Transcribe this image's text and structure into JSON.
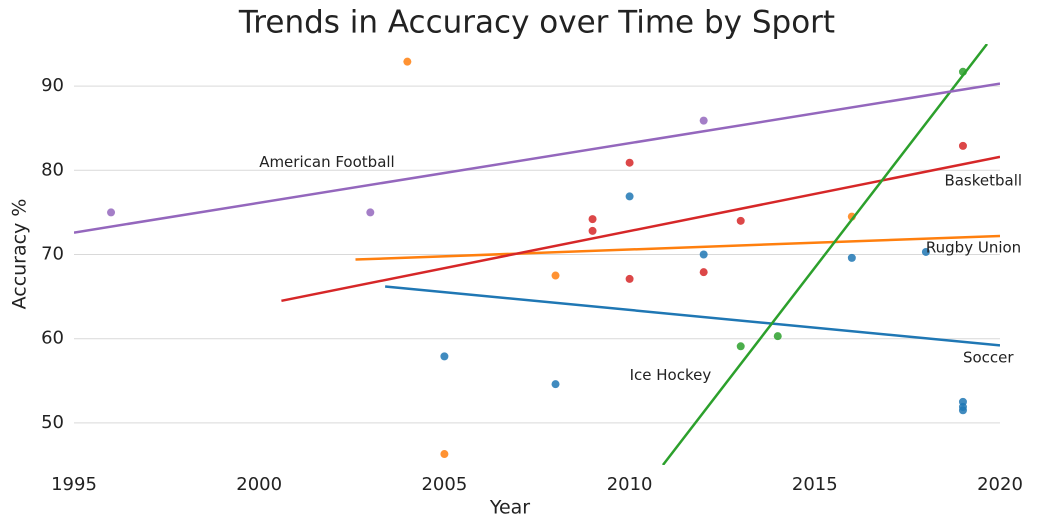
{
  "chart_data": {
    "type": "scatter",
    "title": "Trends in Accuracy over Time by Sport",
    "xlabel": "Year",
    "ylabel": "Accuracy %",
    "xlim": [
      1995,
      2020
    ],
    "ylim": [
      45,
      95
    ],
    "xticks": [
      1995,
      2000,
      2005,
      2010,
      2015,
      2020
    ],
    "yticks": [
      50,
      60,
      70,
      80,
      90
    ],
    "grid": true,
    "series": [
      {
        "name": "Soccer",
        "color": "#1f77b4",
        "x": [
          2005,
          2008,
          2010,
          2012,
          2016,
          2018,
          2019,
          2019,
          2019
        ],
        "y": [
          57.9,
          54.6,
          76.9,
          70,
          69.6,
          70.3,
          52.5,
          51.9,
          51.5
        ],
        "trend": {
          "x": [
            2003.4,
            2020
          ],
          "y": [
            66.2,
            59.2
          ]
        }
      },
      {
        "name": "Rugby Union",
        "color": "#ff7f0e",
        "x": [
          2004,
          2005,
          2008,
          2016
        ],
        "y": [
          92.9,
          46.3,
          67.5,
          74.5
        ],
        "trend": {
          "x": [
            2002.6,
            2020
          ],
          "y": [
            69.4,
            72.2
          ]
        }
      },
      {
        "name": "Basketball",
        "color": "#d62728",
        "x": [
          2009,
          2009,
          2010,
          2010,
          2012,
          2013,
          2019
        ],
        "y": [
          74.2,
          72.8,
          80.9,
          67.1,
          67.9,
          74,
          82.9
        ],
        "trend": {
          "x": [
            2000.6,
            2020
          ],
          "y": [
            64.5,
            81.6
          ]
        }
      },
      {
        "name": "Ice Hockey",
        "color": "#2ca02c",
        "x": [
          2013,
          2014,
          2019
        ],
        "y": [
          59.1,
          60.3,
          91.7
        ],
        "trend": {
          "x": [
            2010.9,
            2019.65
          ],
          "y": [
            45,
            95
          ]
        }
      },
      {
        "name": "American Football",
        "color": "#9467bd",
        "x": [
          1996,
          2003,
          2012
        ],
        "y": [
          75,
          75,
          85.9
        ],
        "trend": {
          "x": [
            1995,
            2020
          ],
          "y": [
            72.6,
            90.3
          ]
        }
      }
    ]
  }
}
